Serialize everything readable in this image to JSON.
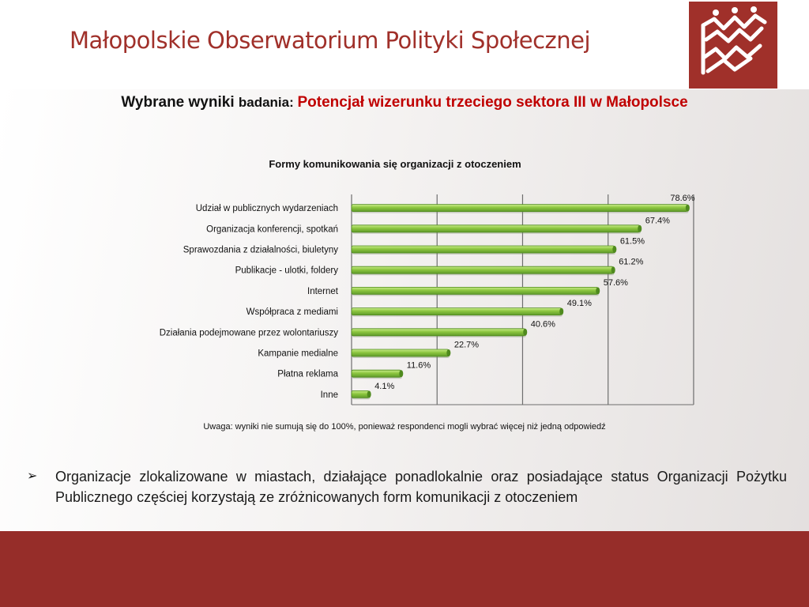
{
  "header": {
    "title": "Małopolskie Obserwatorium Polityki Społecznej"
  },
  "subtitle": {
    "prefix": "Wybrane wyniki ",
    "prefix2": "badania: ",
    "highlight": "Potencjał wizerunku trzeciego sektora III w Małopolsce"
  },
  "colors": {
    "brand": "#a0302a",
    "footer": "#962d29",
    "bar": "#8cc63f",
    "highlight_text": "#c00000"
  },
  "chart_data": {
    "type": "bar",
    "orientation": "horizontal",
    "title": "Formy komunikowania się organizacji z otoczeniem",
    "categories": [
      "Udział w publicznych wydarzeniach",
      "Organizacja konferencji, spotkań",
      "Sprawozdania z działalności, biuletyny",
      "Publikacje - ulotki, foldery",
      "Internet",
      "Współpraca z mediami",
      "Działania podejmowane przez wolontariuszy",
      "Kampanie medialne",
      "Płatna reklama",
      "Inne"
    ],
    "values": [
      78.6,
      67.4,
      61.5,
      61.2,
      57.6,
      49.1,
      40.6,
      22.7,
      11.6,
      4.1
    ],
    "value_labels": [
      "78.6%",
      "67.4%",
      "61.5%",
      "61.2%",
      "57.6%",
      "49.1%",
      "40.6%",
      "22.7%",
      "11.6%",
      "4.1%"
    ],
    "xlim": [
      0,
      85
    ],
    "grid": true,
    "legend": "none"
  },
  "note": "Uwaga: wyniki nie sumują się do 100%, ponieważ respondenci mogli wybrać więcej niż jedną odpowiedź",
  "bullet": {
    "icon": "arrow-bullet-icon",
    "text": "Organizacje zlokalizowane w miastach, działające ponadlokalnie oraz posiadające status Organizacji Pożytku Publicznego częściej korzystają ze zróżnicowanych form komunikacji z otoczeniem"
  }
}
